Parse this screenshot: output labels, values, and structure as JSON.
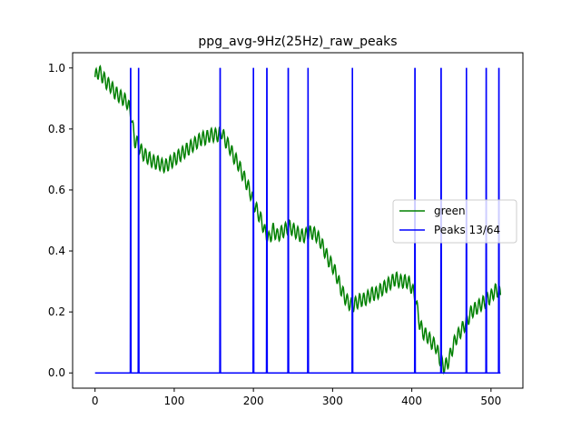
{
  "chart_data": {
    "type": "line",
    "title": "ppg_avg-9Hz(25Hz)_raw_peaks",
    "xlabel": "",
    "ylabel": "",
    "xlim": [
      -28.3,
      540.3
    ],
    "ylim": [
      -0.05,
      1.05
    ],
    "xticks": [
      0,
      100,
      200,
      300,
      400,
      500
    ],
    "yticks": [
      0.0,
      0.2,
      0.4,
      0.6,
      0.8,
      1.0
    ],
    "xtick_labels": [
      "0",
      "100",
      "200",
      "300",
      "400",
      "500"
    ],
    "ytick_labels": [
      "0.0",
      "0.2",
      "0.4",
      "0.6",
      "0.8",
      "1.0"
    ],
    "grid": false,
    "legend_position": "center-right",
    "series": [
      {
        "name": "green",
        "color": "#008000",
        "x": [
          0,
          5,
          10,
          15,
          20,
          25,
          30,
          35,
          40,
          43,
          46,
          48,
          50,
          52,
          56,
          60,
          65,
          70,
          75,
          80,
          85,
          90,
          95,
          100,
          105,
          110,
          115,
          120,
          125,
          130,
          135,
          140,
          145,
          150,
          155,
          160,
          165,
          170,
          175,
          180,
          185,
          190,
          195,
          200,
          205,
          210,
          215,
          220,
          225,
          230,
          235,
          240,
          245,
          250,
          255,
          260,
          265,
          270,
          275,
          280,
          285,
          290,
          295,
          300,
          305,
          310,
          315,
          320,
          325,
          330,
          335,
          340,
          345,
          350,
          355,
          360,
          365,
          370,
          375,
          380,
          385,
          390,
          395,
          400,
          405,
          410,
          415,
          420,
          425,
          430,
          435,
          440,
          445,
          450,
          455,
          460,
          465,
          470,
          475,
          480,
          485,
          490,
          495,
          500,
          505,
          510,
          512
        ],
        "y": [
          0.97,
          0.99,
          0.97,
          0.95,
          0.94,
          0.92,
          0.91,
          0.9,
          0.89,
          0.87,
          0.84,
          0.8,
          0.76,
          0.76,
          0.74,
          0.72,
          0.71,
          0.7,
          0.69,
          0.69,
          0.68,
          0.68,
          0.69,
          0.7,
          0.71,
          0.72,
          0.73,
          0.74,
          0.75,
          0.76,
          0.77,
          0.77,
          0.78,
          0.78,
          0.78,
          0.79,
          0.76,
          0.74,
          0.71,
          0.69,
          0.66,
          0.63,
          0.6,
          0.56,
          0.53,
          0.5,
          0.46,
          0.44,
          0.47,
          0.45,
          0.46,
          0.47,
          0.48,
          0.47,
          0.46,
          0.45,
          0.45,
          0.46,
          0.46,
          0.45,
          0.43,
          0.4,
          0.37,
          0.35,
          0.32,
          0.28,
          0.25,
          0.23,
          0.22,
          0.23,
          0.24,
          0.24,
          0.25,
          0.26,
          0.26,
          0.27,
          0.28,
          0.29,
          0.3,
          0.31,
          0.3,
          0.3,
          0.3,
          0.28,
          0.24,
          0.16,
          0.13,
          0.12,
          0.1,
          0.09,
          0.05,
          0.02,
          0.03,
          0.07,
          0.11,
          0.13,
          0.15,
          0.17,
          0.2,
          0.21,
          0.22,
          0.23,
          0.24,
          0.25,
          0.27,
          0.27,
          0.25
        ]
      },
      {
        "name": "Peaks 13/64",
        "color": "#0000ff",
        "x_range": [
          0,
          512
        ],
        "baseline": 0.0,
        "peak_height": 1.0,
        "peak_x": [
          45,
          55,
          158,
          200,
          217,
          244,
          269,
          325,
          404,
          437,
          469,
          494,
          510
        ]
      }
    ]
  }
}
